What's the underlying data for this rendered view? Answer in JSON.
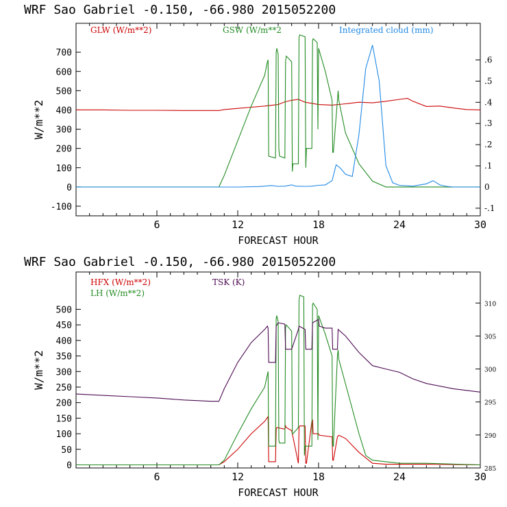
{
  "chart_data": [
    {
      "type": "line",
      "title": "WRF   Sao Gabriel   -0.150, -66.980  2015052200",
      "xlabel": "FORECAST HOUR",
      "ylabel": "W/m**2",
      "xlim": [
        0,
        30
      ],
      "ylim": [
        -150,
        850
      ],
      "y2lim": [
        -0.136,
        0.773
      ],
      "xticks": [
        6,
        12,
        18,
        24,
        30
      ],
      "xtick_labels": [
        "6",
        "12",
        "18",
        "24",
        "30"
      ],
      "yticks": [
        -100,
        0,
        100,
        200,
        300,
        400,
        500,
        600,
        700
      ],
      "ytick_labels": [
        "-100",
        "0",
        "100",
        "200",
        "300",
        "400",
        "500",
        "600",
        "700"
      ],
      "y2ticks": [
        -0.1,
        0,
        0.1,
        0.2,
        0.3,
        0.4,
        0.5,
        0.6
      ],
      "y2tick_labels": [
        "-.1",
        "0",
        ".1",
        ".2",
        ".3",
        ".4",
        ".5",
        ".6"
      ],
      "colors": {
        "GLW": "#cc0000",
        "GSW": "#228b22",
        "CLOUD": "#1e88e5"
      },
      "series": [
        {
          "name": "GLW (W/m**2)",
          "key": "GLW",
          "axis": "left",
          "x": [
            0,
            2,
            4,
            6,
            8,
            10,
            10.6,
            11,
            12,
            13,
            14,
            15,
            15.5,
            16,
            16.5,
            17,
            18,
            19,
            20,
            21,
            22,
            23,
            24,
            24.6,
            25,
            26,
            27,
            28,
            29,
            30
          ],
          "values": [
            400,
            400,
            398,
            398,
            397,
            397,
            397,
            402,
            408,
            414,
            420,
            428,
            442,
            450,
            455,
            440,
            428,
            425,
            432,
            440,
            437,
            445,
            455,
            460,
            445,
            418,
            420,
            410,
            402,
            400
          ]
        },
        {
          "name": "GSW (W/m**2",
          "key": "GSW",
          "axis": "left",
          "x": [
            0,
            10.6,
            11,
            12,
            13,
            14,
            14.2,
            14.25,
            14.3,
            14.8,
            14.85,
            14.9,
            15.0,
            15.05,
            15.1,
            15.5,
            15.55,
            15.6,
            16.0,
            16.05,
            16.1,
            16.5,
            16.55,
            16.6,
            17.0,
            17.05,
            17.1,
            17.5,
            17.55,
            17.6,
            17.9,
            17.95,
            18.0,
            18.5,
            19.0,
            19.05,
            19.1,
            19.4,
            19.45,
            19.5,
            20,
            21,
            22,
            23,
            24,
            27,
            30
          ],
          "values": [
            0,
            0,
            60,
            240,
            420,
            580,
            650,
            660,
            160,
            150,
            700,
            720,
            690,
            200,
            160,
            150,
            650,
            680,
            650,
            80,
            120,
            120,
            780,
            790,
            780,
            100,
            200,
            200,
            760,
            770,
            750,
            300,
            720,
            600,
            450,
            180,
            180,
            450,
            500,
            450,
            280,
            120,
            30,
            0,
            0,
            0,
            0
          ]
        },
        {
          "name": "Integrated cloud (mm)",
          "key": "CLOUD",
          "axis": "right",
          "x": [
            0,
            12,
            13.5,
            14,
            14.5,
            15,
            15.5,
            16,
            16.3,
            17,
            17.5,
            18,
            18.5,
            19,
            19.3,
            19.6,
            20,
            20.5,
            21,
            21.5,
            22,
            22.5,
            23,
            23.5,
            24,
            25,
            26,
            26.5,
            27,
            27.5,
            28,
            30
          ],
          "values": [
            0,
            0,
            0.002,
            0.004,
            0.007,
            0.003,
            0.004,
            0.01,
            0.004,
            0.003,
            0.004,
            0.008,
            0.01,
            0.03,
            0.105,
            0.09,
            0.06,
            0.05,
            0.25,
            0.56,
            0.67,
            0.5,
            0.1,
            0.02,
            0.008,
            0.004,
            0.015,
            0.03,
            0.01,
            0.003,
            0,
            0
          ]
        }
      ],
      "legend": [
        {
          "key": "GLW",
          "label": "GLW (W/m**2)"
        },
        {
          "key": "GSW",
          "label": "GSW (W/m**2"
        },
        {
          "key": "CLOUD",
          "label": "Integrated cloud (mm)"
        }
      ]
    },
    {
      "type": "line",
      "title": "WRF   Sao Gabriel   -0.150, -66.980  2015052200",
      "xlabel": "FORECAST HOUR",
      "ylabel": "W/m**2",
      "xlim": [
        0,
        30
      ],
      "ylim": [
        -10,
        620
      ],
      "y2lim": [
        285,
        314.7
      ],
      "xticks": [
        6,
        12,
        18,
        24,
        30
      ],
      "xtick_labels": [
        "6",
        "12",
        "18",
        "24",
        "30"
      ],
      "yticks": [
        0,
        50,
        100,
        150,
        200,
        250,
        300,
        350,
        400,
        450,
        500
      ],
      "ytick_labels": [
        "0",
        "50",
        "100",
        "150",
        "200",
        "250",
        "300",
        "350",
        "400",
        "450",
        "500"
      ],
      "y2ticks": [
        285,
        290,
        295,
        300,
        305,
        310
      ],
      "y2tick_labels": [
        "285",
        "290",
        "295",
        "300",
        "305",
        "310"
      ],
      "colors": {
        "HFX": "#cc0000",
        "LH": "#228b22",
        "TSK": "#4b0850"
      },
      "series": [
        {
          "name": "HFX (W/m**2)",
          "key": "HFX",
          "axis": "left",
          "x": [
            0,
            10,
            10.6,
            11,
            12,
            13,
            14,
            14.2,
            14.25,
            14.3,
            14.8,
            14.85,
            14.9,
            15.5,
            15.55,
            15.6,
            16,
            16.5,
            16.55,
            16.6,
            17.0,
            17.05,
            17.1,
            17.5,
            17.55,
            17.6,
            18.0,
            18.05,
            19.0,
            19.05,
            19.1,
            19.4,
            19.5,
            20,
            21,
            22,
            23,
            26,
            30
          ],
          "values": [
            0,
            0,
            0,
            10,
            50,
            100,
            140,
            152,
            155,
            10,
            10,
            115,
            120,
            115,
            125,
            120,
            110,
            5,
            120,
            125,
            125,
            5,
            5,
            140,
            145,
            100,
            100,
            95,
            90,
            15,
            15,
            90,
            95,
            85,
            40,
            5,
            2,
            2,
            0
          ]
        },
        {
          "name": "LH  (W/m**2)",
          "key": "LH",
          "axis": "left",
          "x": [
            0,
            10,
            10.6,
            11,
            12,
            13,
            14,
            14.2,
            14.25,
            14.3,
            14.8,
            14.85,
            14.9,
            15.0,
            15.05,
            15.1,
            15.5,
            15.55,
            15.6,
            16.0,
            16.05,
            16.1,
            16.5,
            16.55,
            16.6,
            16.9,
            16.95,
            17.0,
            17.5,
            17.55,
            17.6,
            17.9,
            17.95,
            18.0,
            18.5,
            19.0,
            19.05,
            19.1,
            19.4,
            19.45,
            19.5,
            20,
            21,
            21.5,
            22,
            23,
            24,
            26,
            30
          ],
          "values": [
            0,
            0,
            0,
            15,
            100,
            180,
            250,
            290,
            300,
            60,
            60,
            470,
            480,
            460,
            80,
            70,
            70,
            440,
            450,
            430,
            100,
            100,
            120,
            530,
            545,
            540,
            30,
            60,
            60,
            515,
            520,
            500,
            80,
            480,
            420,
            350,
            60,
            60,
            350,
            370,
            340,
            260,
            100,
            30,
            15,
            10,
            5,
            5,
            0
          ]
        },
        {
          "name": "TSK (K)",
          "key": "TSK",
          "axis": "right",
          "x": [
            0,
            2,
            4,
            6,
            8,
            10,
            10.6,
            11,
            12,
            13,
            14,
            14.2,
            14.25,
            14.3,
            14.8,
            14.85,
            15,
            15.5,
            15.55,
            16,
            16.5,
            16.55,
            17,
            17.05,
            17.5,
            17.55,
            18.0,
            18.05,
            18.5,
            19,
            19.05,
            19.4,
            19.45,
            20,
            21,
            22,
            23,
            24,
            25,
            26,
            28,
            30
          ],
          "values": [
            296.2,
            296.0,
            295.8,
            295.6,
            295.3,
            295.1,
            295.1,
            297,
            301,
            304,
            306,
            306.5,
            306.2,
            301,
            301,
            306.5,
            307,
            306.8,
            303,
            303,
            306,
            306.5,
            306,
            303,
            303,
            307,
            307.5,
            306.5,
            306.2,
            306.2,
            303,
            303,
            306,
            305,
            302.5,
            300.5,
            300,
            299.5,
            298.5,
            297.8,
            297.0,
            296.5
          ]
        }
      ],
      "legend": [
        {
          "key": "HFX",
          "label": "HFX (W/m**2)"
        },
        {
          "key": "LH",
          "label": "LH  (W/m**2)"
        },
        {
          "key": "TSK",
          "label": "TSK (K)"
        }
      ]
    }
  ]
}
